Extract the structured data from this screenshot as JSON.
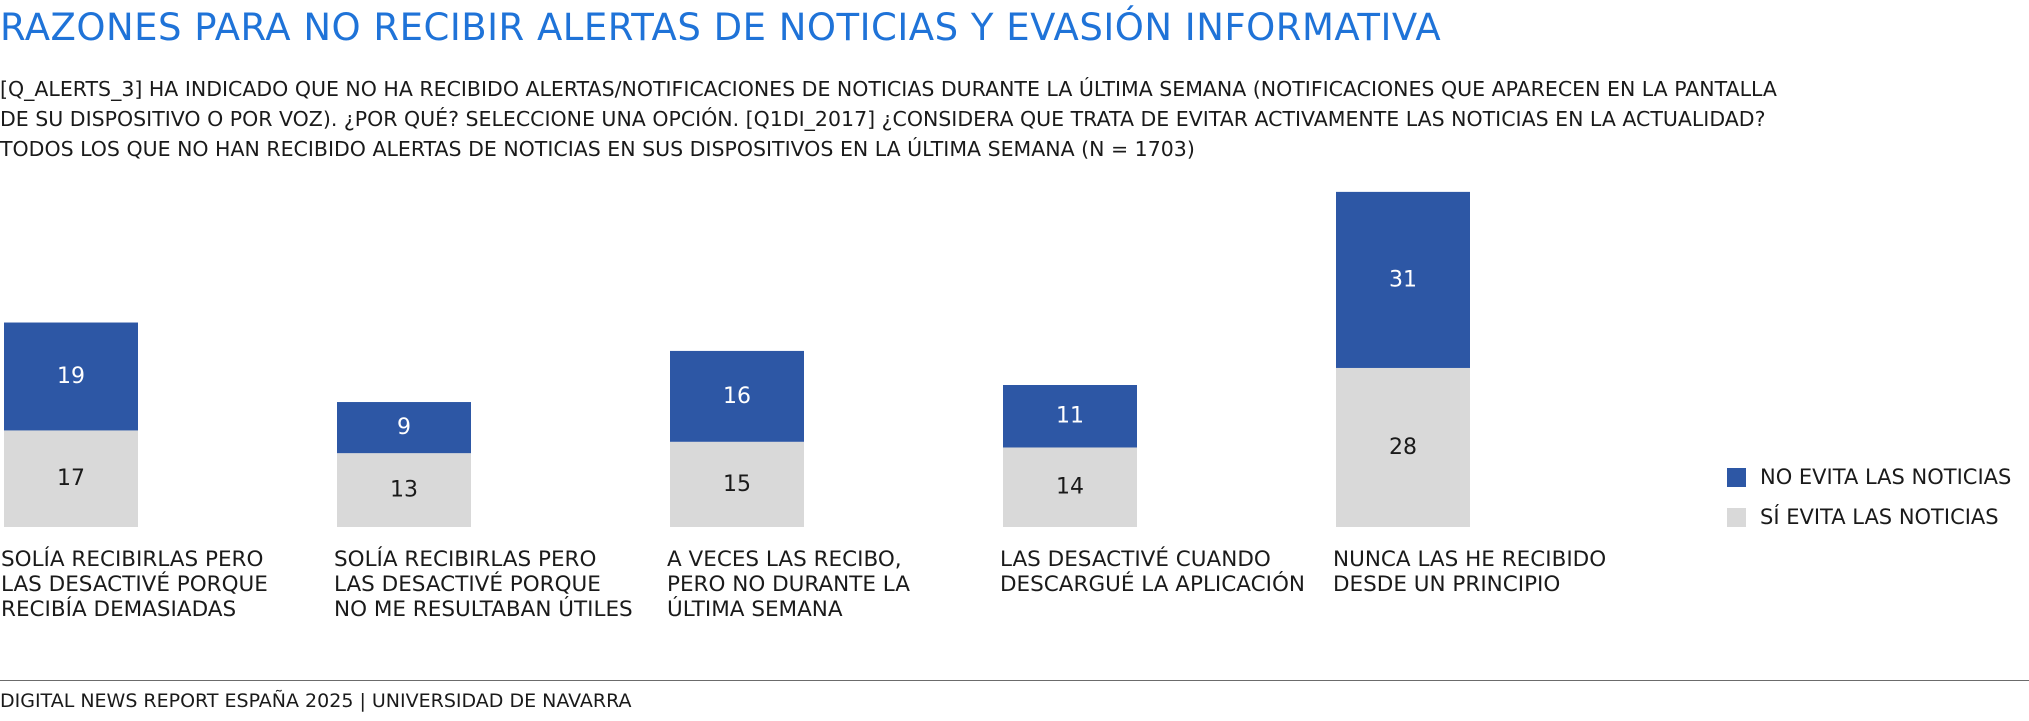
{
  "title": "RAZONES PARA NO RECIBIR ALERTAS DE NOTICIAS Y EVASIÓN INFORMATIVA",
  "subtitle_lines": [
    "[Q_ALERTS_3] HA INDICADO QUE NO HA RECIBIDO ALERTAS/NOTIFICACIONES DE NOTICIAS DURANTE LA ÚLTIMA SEMANA (NOTIFICACIONES QUE APARECEN EN LA PANTALLA",
    "DE SU DISPOSITIVO O POR VOZ). ¿POR QUÉ? SELECCIONE UNA OPCIÓN. [Q1DI_2017] ¿CONSIDERA QUE TRATA DE EVITAR ACTIVAMENTE LAS NOTICIAS EN LA ACTUALIDAD?",
    "TODOS LOS QUE NO HAN RECIBIDO ALERTAS DE NOTICIAS EN SUS DISPOSITIVOS EN LA ÚLTIMA SEMANA (N = 1703)"
  ],
  "footer": "DIGITAL NEWS REPORT ESPAÑA 2025 | UNIVERSIDAD DE NAVARRA",
  "colors": {
    "no_evita": "#2d57a5",
    "si_evita": "#d9d9d9",
    "title": "#1f73d8"
  },
  "chart_data": {
    "type": "bar",
    "stacked": true,
    "categories": [
      "SOLÍA RECIBIRLAS PERO\nLAS DESACTIVÉ PORQUE\nRECIBÍA DEMASIADAS",
      "SOLÍA RECIBIRLAS PERO\nLAS DESACTIVÉ PORQUE\nNO ME RESULTABAN ÚTILES",
      "A VECES LAS RECIBO,\nPERO NO DURANTE LA\nÚLTIMA SEMANA",
      "LAS DESACTIVÉ CUANDO\nDESCARGUÉ LA APLICACIÓN",
      "NUNCA LAS HE RECIBIDO\nDESDE UN PRINCIPIO"
    ],
    "series": [
      {
        "name": "SÍ EVITA LAS NOTICIAS",
        "values": [
          17,
          13,
          15,
          14,
          28
        ],
        "color": "#d9d9d9"
      },
      {
        "name": "NO EVITA LAS NOTICIAS",
        "values": [
          19,
          9,
          16,
          11,
          31
        ],
        "color": "#2d57a5"
      }
    ],
    "legend": [
      "NO EVITA LAS NOTICIAS",
      "SÍ EVITA LAS NOTICIAS"
    ],
    "legend_position": "right",
    "grid": false
  }
}
